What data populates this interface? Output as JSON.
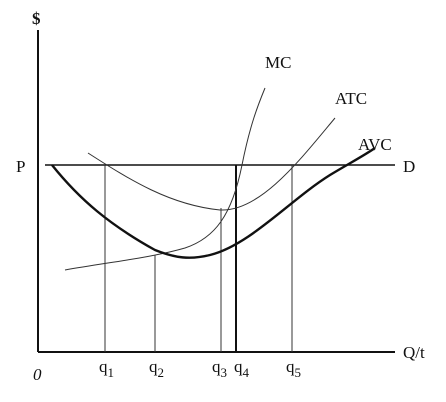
{
  "axes": {
    "y_label": "$",
    "x_label": "Q/t",
    "origin": "0"
  },
  "price": {
    "label": "P",
    "demand": "D"
  },
  "curves": {
    "mc": "MC",
    "atc": "ATC",
    "avc": "AVC"
  },
  "quantities": [
    {
      "base": "q",
      "sub": "1"
    },
    {
      "base": "q",
      "sub": "2"
    },
    {
      "base": "q",
      "sub": "3"
    },
    {
      "base": "q",
      "sub": "4"
    },
    {
      "base": "q",
      "sub": "5"
    }
  ]
}
